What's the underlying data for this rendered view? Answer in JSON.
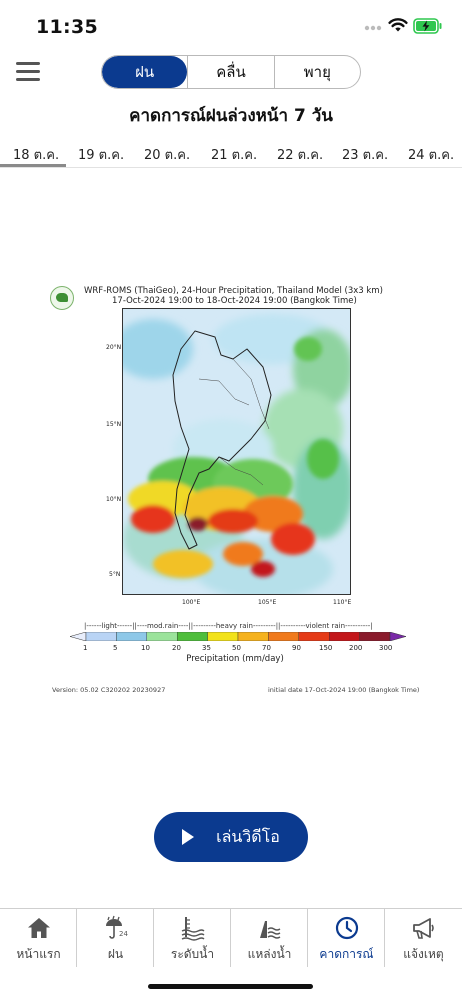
{
  "status_bar": {
    "time": "11:35"
  },
  "header": {
    "tabs": [
      {
        "label": "ฝน",
        "active": true
      },
      {
        "label": "คลื่น",
        "active": false
      },
      {
        "label": "พายุ",
        "active": false
      }
    ],
    "title": "คาดการณ์ฝนล่วงหน้า 7 วัน"
  },
  "dates": [
    "18 ต.ค.",
    "19 ต.ค.",
    "20 ต.ค.",
    "21 ต.ค.",
    "22 ต.ค.",
    "23 ต.ค.",
    "24 ต.ค."
  ],
  "selected_date_index": 0,
  "figure": {
    "title_line1": "WRF-ROMS (ThaiGeo), 24-Hour Precipitation, Thailand Model (3x3 km)",
    "title_line2": "17-Oct-2024 19:00 to 18-Oct-2024 19:00 (Bangkok Time)",
    "lat_labels": [
      "20°N",
      "15°N",
      "10°N",
      "5°N"
    ],
    "lon_labels": [
      "100°E",
      "105°E",
      "110°E"
    ],
    "legend_text": "|------light------||----mod.rain----||---------heavy rain---------||----------violent rain----------|",
    "colorbar_ticks": [
      "1",
      "5",
      "10",
      "20",
      "35",
      "50",
      "70",
      "90",
      "150",
      "200",
      "300"
    ],
    "colorbar_colors": [
      "#e8eefc",
      "#b9d4f5",
      "#8ec8e8",
      "#9be39b",
      "#4fbe3c",
      "#f2e21a",
      "#f5b21e",
      "#f07a1c",
      "#e53a17",
      "#c3161a",
      "#8a1b2c",
      "#7a2aa8"
    ],
    "precip_label": "Precipitation (mm/day)",
    "version": "Version: 05.02 C320202 20230927",
    "init_date": "initial date 17-Oct-2024 19:00 (Bangkok Time)"
  },
  "play_button": {
    "label": "เล่นวิดีโอ"
  },
  "bottom_nav": [
    {
      "label": "หน้าแรก",
      "icon": "home-icon",
      "active": false
    },
    {
      "label": "ฝน",
      "icon": "rain-24-icon",
      "active": false
    },
    {
      "label": "ระดับน้ำ",
      "icon": "water-level-icon",
      "active": false
    },
    {
      "label": "แหล่งน้ำ",
      "icon": "reservoir-icon",
      "active": false
    },
    {
      "label": "คาดการณ์",
      "icon": "clock-icon",
      "active": true
    },
    {
      "label": "แจ้งเหตุ",
      "icon": "megaphone-icon",
      "active": false
    }
  ],
  "colors": {
    "accent": "#0b3a8f",
    "battery": "#2fc74f"
  }
}
